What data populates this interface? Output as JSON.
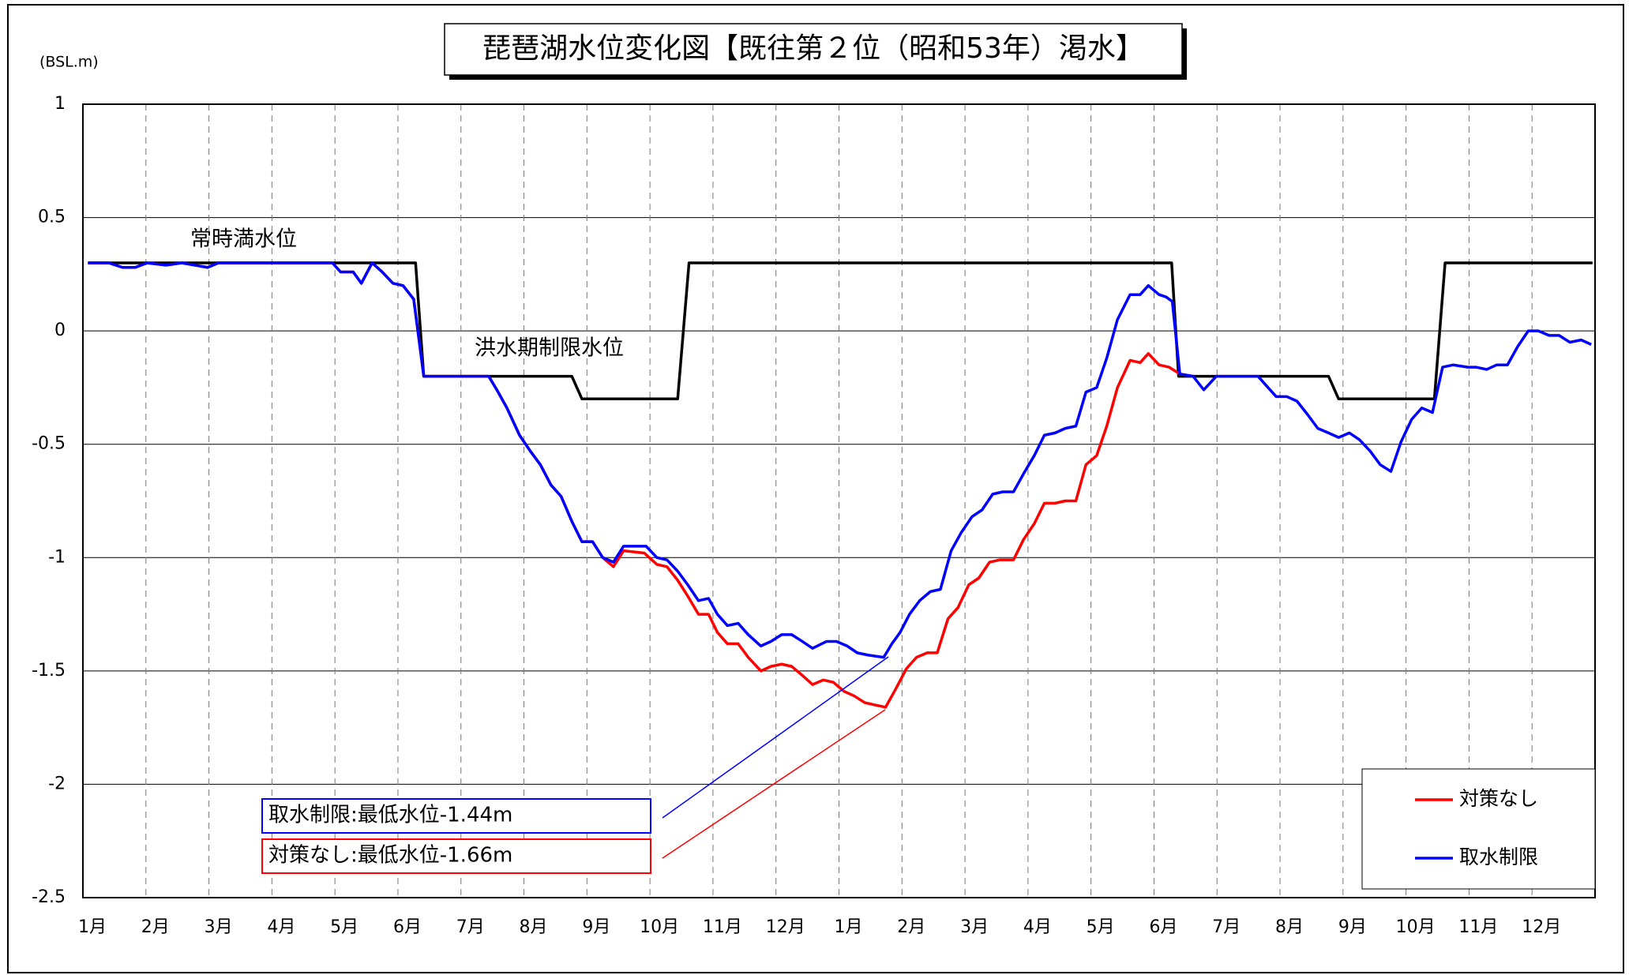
{
  "chart_data": {
    "type": "line",
    "title": "琵琶湖水位変化図【既往第２位（昭和53年）渇水】",
    "y_label": "(BSL.m)",
    "categories": [
      "1月",
      "2月",
      "3月",
      "4月",
      "5月",
      "6月",
      "7月",
      "8月",
      "9月",
      "10月",
      "11月",
      "12月",
      "1月",
      "2月",
      "3月",
      "4月",
      "5月",
      "6月",
      "7月",
      "8月",
      "9月",
      "10月",
      "11月",
      "12月"
    ],
    "xlim": [
      0,
      24
    ],
    "ylim": [
      -2.5,
      1
    ],
    "yticks": [
      1,
      0.5,
      0,
      -0.5,
      -1,
      -1.5,
      -2,
      -2.5
    ],
    "grid": true,
    "legend": "lower right",
    "reference": {
      "color": "#000000",
      "x": [
        0.08,
        5.28,
        5.41,
        7.76,
        7.92,
        9.44,
        9.62,
        17.28,
        17.39,
        19.77,
        19.93,
        21.45,
        21.62,
        23.96
      ],
      "values": [
        0.3,
        0.3,
        -0.2,
        -0.2,
        -0.3,
        -0.3,
        0.3,
        0.3,
        -0.2,
        -0.2,
        -0.3,
        -0.3,
        0.3,
        0.3
      ]
    },
    "annotations": [
      {
        "text": "常時満水位"
      },
      {
        "text": "洪水期制限水位"
      }
    ],
    "callouts": [
      {
        "text": "取水制限:最低水位-1.44m",
        "color": "#0000ff"
      },
      {
        "text": "対策なし:最低水位-1.66m",
        "color": "#ff0000"
      }
    ],
    "series": [
      {
        "name": "対策なし",
        "color": "#ff0000",
        "x": [
          0.08,
          0.41,
          0.63,
          0.83,
          1.02,
          1.32,
          1.57,
          1.98,
          2.15,
          2.64,
          2.81,
          3.96,
          4.09,
          4.29,
          4.42,
          4.59,
          4.75,
          4.92,
          5.08,
          5.25,
          5.41,
          6.44,
          6.57,
          6.73,
          6.93,
          7.1,
          7.26,
          7.43,
          7.59,
          7.76,
          7.92,
          8.09,
          8.25,
          8.42,
          8.58,
          8.91,
          9.11,
          9.27,
          9.44,
          9.6,
          9.77,
          9.93,
          10.07,
          10.23,
          10.4,
          10.56,
          10.76,
          10.92,
          11.09,
          11.25,
          11.42,
          11.58,
          11.75,
          11.91,
          12.08,
          12.24,
          12.41,
          12.57,
          12.74,
          12.9,
          13.07,
          13.23,
          13.4,
          13.56,
          13.73,
          13.89,
          14.06,
          14.22,
          14.39,
          14.55,
          14.77,
          14.93,
          15.1,
          15.26,
          15.43,
          15.59,
          15.76,
          15.92,
          16.09,
          16.25,
          16.42,
          16.62,
          16.78,
          16.91,
          17.08,
          17.24,
          17.41,
          17.62
        ],
        "values": [
          0.3,
          0.3,
          0.28,
          0.28,
          0.3,
          0.29,
          0.3,
          0.28,
          0.3,
          0.3,
          0.3,
          0.3,
          0.26,
          0.26,
          0.21,
          0.3,
          0.26,
          0.21,
          0.2,
          0.14,
          -0.2,
          -0.2,
          -0.26,
          -0.34,
          -0.46,
          -0.53,
          -0.59,
          -0.68,
          -0.73,
          -0.84,
          -0.93,
          -0.93,
          -1.0,
          -1.04,
          -0.97,
          -0.98,
          -1.03,
          -1.04,
          -1.1,
          -1.17,
          -1.25,
          -1.25,
          -1.33,
          -1.38,
          -1.38,
          -1.44,
          -1.5,
          -1.48,
          -1.47,
          -1.48,
          -1.52,
          -1.56,
          -1.54,
          -1.55,
          -1.59,
          -1.61,
          -1.64,
          -1.65,
          -1.66,
          -1.58,
          -1.49,
          -1.44,
          -1.42,
          -1.42,
          -1.27,
          -1.22,
          -1.12,
          -1.09,
          -1.02,
          -1.01,
          -1.01,
          -0.92,
          -0.85,
          -0.76,
          -0.76,
          -0.75,
          -0.75,
          -0.59,
          -0.55,
          -0.42,
          -0.25,
          -0.13,
          -0.14,
          -0.1,
          -0.15,
          -0.16,
          -0.19,
          -0.2
        ]
      },
      {
        "name": "取水制限",
        "color": "#0000ff",
        "x": [
          0.08,
          0.41,
          0.63,
          0.83,
          1.02,
          1.32,
          1.57,
          1.98,
          2.15,
          2.64,
          2.81,
          3.96,
          4.09,
          4.29,
          4.42,
          4.59,
          4.75,
          4.92,
          5.08,
          5.25,
          5.41,
          6.44,
          6.57,
          6.73,
          6.93,
          7.1,
          7.26,
          7.43,
          7.59,
          7.76,
          7.92,
          8.09,
          8.25,
          8.42,
          8.58,
          8.94,
          9.11,
          9.27,
          9.44,
          9.6,
          9.77,
          9.93,
          10.07,
          10.23,
          10.4,
          10.56,
          10.76,
          10.92,
          11.09,
          11.25,
          11.42,
          11.58,
          11.8,
          11.96,
          12.13,
          12.29,
          12.46,
          12.71,
          12.84,
          12.97,
          13.12,
          13.28,
          13.45,
          13.61,
          13.78,
          13.94,
          14.11,
          14.27,
          14.44,
          14.6,
          14.77,
          14.93,
          15.1,
          15.26,
          15.43,
          15.59,
          15.76,
          15.92,
          16.09,
          16.25,
          16.42,
          16.62,
          16.78,
          16.91,
          17.08,
          17.19,
          17.29,
          17.41,
          17.62,
          17.79,
          17.99,
          18.65,
          18.81,
          18.94,
          19.11,
          19.27,
          19.44,
          19.6,
          19.77,
          19.93,
          20.1,
          20.26,
          20.43,
          20.59,
          20.76,
          20.92,
          21.09,
          21.25,
          21.42,
          21.58,
          21.75,
          21.98,
          22.11,
          22.28,
          22.44,
          22.61,
          22.77,
          22.94,
          23.1,
          23.27,
          23.43,
          23.6,
          23.78,
          23.94
        ],
        "values": [
          0.3,
          0.3,
          0.28,
          0.28,
          0.3,
          0.29,
          0.3,
          0.28,
          0.3,
          0.3,
          0.3,
          0.3,
          0.26,
          0.26,
          0.21,
          0.3,
          0.26,
          0.21,
          0.2,
          0.14,
          -0.2,
          -0.2,
          -0.26,
          -0.34,
          -0.46,
          -0.53,
          -0.59,
          -0.68,
          -0.73,
          -0.84,
          -0.93,
          -0.93,
          -1.0,
          -1.02,
          -0.95,
          -0.95,
          -1.0,
          -1.01,
          -1.06,
          -1.12,
          -1.19,
          -1.18,
          -1.25,
          -1.3,
          -1.29,
          -1.34,
          -1.39,
          -1.37,
          -1.34,
          -1.34,
          -1.37,
          -1.4,
          -1.37,
          -1.37,
          -1.39,
          -1.42,
          -1.43,
          -1.44,
          -1.38,
          -1.33,
          -1.25,
          -1.19,
          -1.15,
          -1.14,
          -0.97,
          -0.89,
          -0.82,
          -0.79,
          -0.72,
          -0.71,
          -0.71,
          -0.63,
          -0.55,
          -0.46,
          -0.45,
          -0.43,
          -0.42,
          -0.27,
          -0.25,
          -0.12,
          0.05,
          0.16,
          0.16,
          0.2,
          0.16,
          0.15,
          0.13,
          -0.19,
          -0.2,
          -0.26,
          -0.2,
          -0.2,
          -0.25,
          -0.29,
          -0.29,
          -0.31,
          -0.37,
          -0.43,
          -0.45,
          -0.47,
          -0.45,
          -0.48,
          -0.53,
          -0.59,
          -0.62,
          -0.49,
          -0.39,
          -0.34,
          -0.36,
          -0.16,
          -0.15,
          -0.16,
          -0.16,
          -0.17,
          -0.15,
          -0.15,
          -0.07,
          0.0,
          0.0,
          -0.02,
          -0.02,
          -0.05,
          -0.04,
          -0.06
        ]
      }
    ]
  }
}
